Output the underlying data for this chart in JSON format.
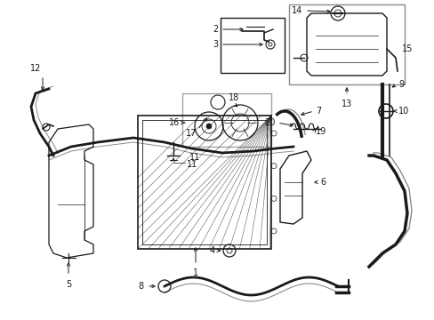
{
  "bg_color": "#ffffff",
  "line_color": "#1a1a1a",
  "fig_width": 4.89,
  "fig_height": 3.6,
  "dpi": 100,
  "img_extent": [
    0,
    489,
    0,
    360
  ]
}
